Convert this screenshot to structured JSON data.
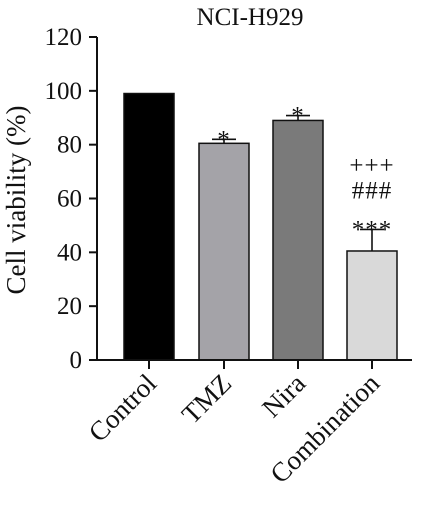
{
  "chart_data": {
    "type": "bar",
    "title": "NCI-H929",
    "xlabel": "",
    "ylabel": "Cell viability (%)",
    "ylim": [
      0,
      120
    ],
    "yticks": [
      0,
      20,
      40,
      60,
      80,
      100,
      120
    ],
    "categories": [
      "Control",
      "TMZ",
      "Nira",
      "Combination"
    ],
    "values": [
      99,
      80.5,
      89,
      40.5
    ],
    "errors": [
      0,
      1.5,
      1.8,
      8
    ],
    "annotations": [
      [],
      [
        "*"
      ],
      [
        "*"
      ],
      [
        "***",
        "###",
        "+++"
      ]
    ],
    "colors": [
      "#000000",
      "#a4a3a8",
      "#7a7a7a",
      "#d9d9d9"
    ],
    "grid": false,
    "legend": "none"
  }
}
